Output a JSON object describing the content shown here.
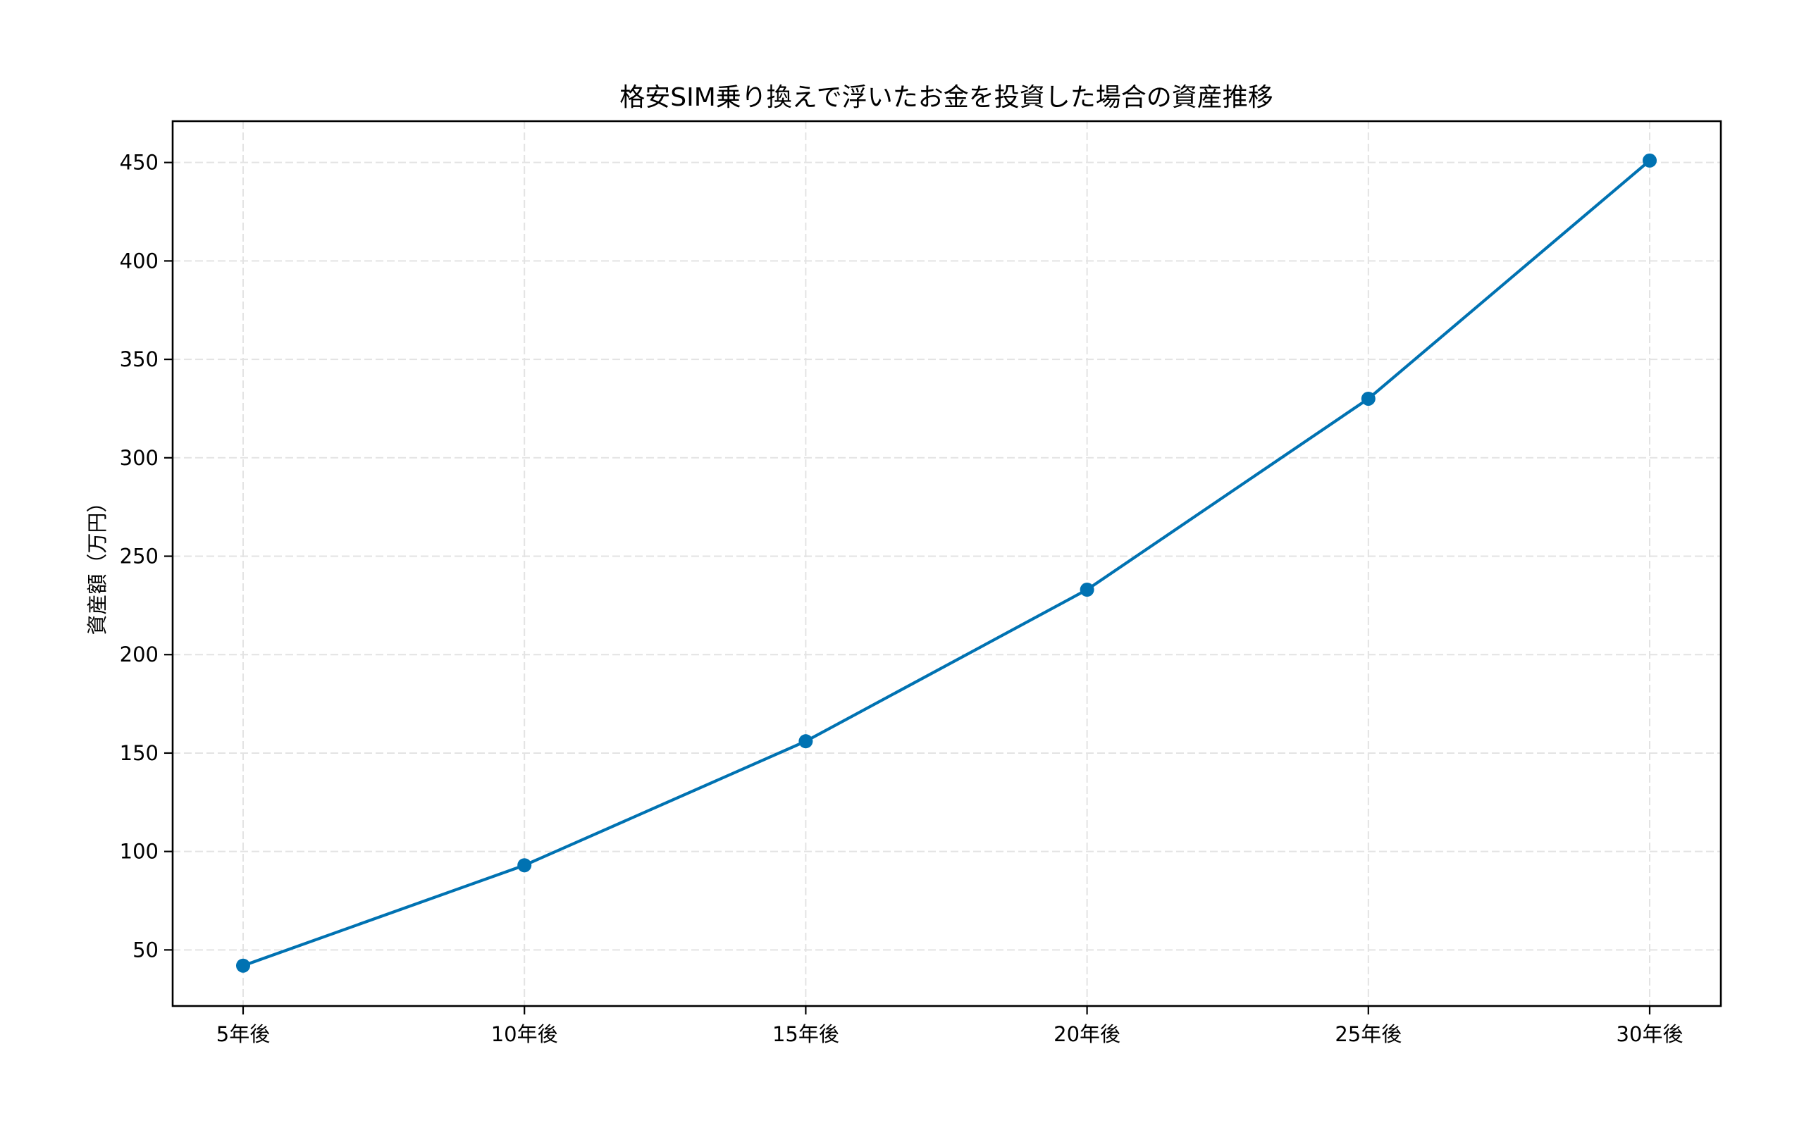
{
  "chart_data": {
    "type": "line",
    "title": "格安SIM乗り換えで浮いたお金を投資した場合の資産推移",
    "xlabel": "",
    "ylabel": "資産額（万円）",
    "categories": [
      "5年後",
      "10年後",
      "15年後",
      "20年後",
      "25年後",
      "30年後"
    ],
    "series": [
      {
        "name": "資産額",
        "values": [
          42,
          93,
          156,
          233,
          330,
          451
        ],
        "color": "#0072B2",
        "marker": "circle"
      }
    ],
    "yticks": [
      50,
      100,
      150,
      200,
      250,
      300,
      350,
      400,
      450
    ],
    "ylim": [
      21.5,
      471
    ],
    "grid": true,
    "grid_style": "dashed",
    "legend": null
  }
}
